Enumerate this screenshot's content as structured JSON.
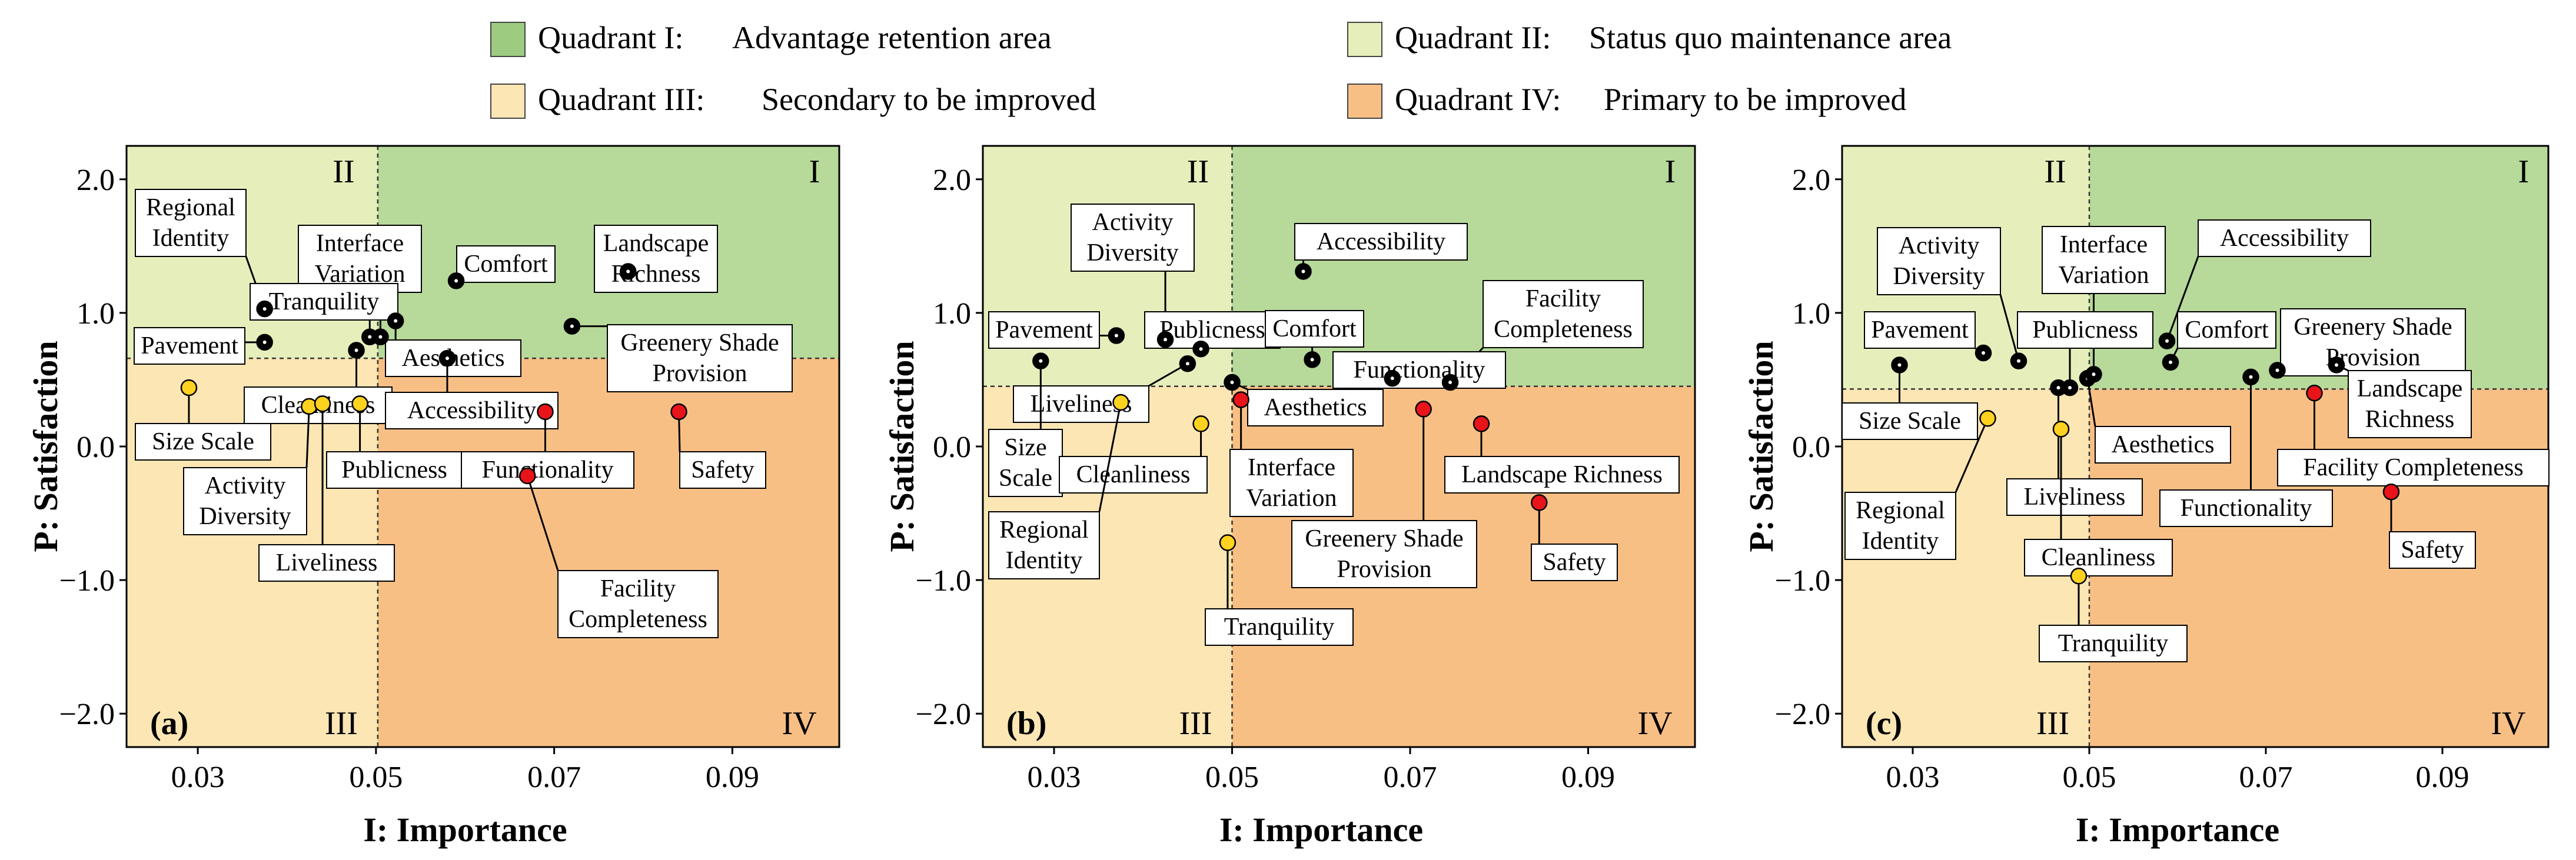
{
  "legend": {
    "items": [
      {
        "label": "Quadrant I:",
        "desc": "Advantage retention area",
        "color": "#9dcc80"
      },
      {
        "label": "Quadrant II:",
        "desc": "Status quo maintenance area",
        "color": "#e6efbb"
      },
      {
        "label": "Quadrant III:",
        "desc": "Secondary to be improved",
        "color": "#fbe6b4"
      },
      {
        "label": "Quadrant IV:",
        "desc": "Primary to be improved",
        "color": "#f8bf85"
      }
    ]
  },
  "colors": {
    "q1": "#b7d99a",
    "q2": "#e6efbb",
    "q3": "#fbe6b4",
    "q4": "#f8bf85",
    "point_black": "#000000",
    "point_yellow": "#ffd21f",
    "point_red": "#e8141a"
  },
  "chart_data": [
    {
      "type": "scatter",
      "panel_label": "(a)",
      "xlabel": "I: Importance",
      "ylabel": "P: Satisfaction",
      "xlim": [
        0.022,
        0.102
      ],
      "ylim": [
        -2.25,
        2.25
      ],
      "xticks": [
        0.03,
        0.05,
        0.07,
        0.09
      ],
      "xtick_labels": [
        "0.03",
        "0.05",
        "0.07",
        "0.09"
      ],
      "yticks": [
        2.0,
        1.0,
        0.0,
        -1.0,
        -2.0
      ],
      "ytick_labels": [
        "2.0",
        "1.0",
        "0.0",
        "−1.0",
        "−2.0"
      ],
      "x_split": 0.0502,
      "y_split": 0.66,
      "quadrant_labels": [
        "I",
        "II",
        "III",
        "IV"
      ],
      "points": [
        {
          "name": "Pavement",
          "x": 0.0375,
          "y": 0.78,
          "group": "black"
        },
        {
          "name": "Regional Identity",
          "x": 0.0375,
          "y": 1.03,
          "group": "black"
        },
        {
          "name": "Tranquility",
          "x": 0.0493,
          "y": 0.82,
          "group": "black"
        },
        {
          "name": "Interface Variation",
          "x": 0.0505,
          "y": 0.82,
          "group": "black"
        },
        {
          "name": "Comfort",
          "x": 0.059,
          "y": 1.24,
          "group": "black"
        },
        {
          "name": "Landscape Richness",
          "x": 0.0783,
          "y": 1.31,
          "group": "black"
        },
        {
          "name": "Aesthetics",
          "x": 0.0522,
          "y": 0.94,
          "group": "black"
        },
        {
          "name": "Cleanliness",
          "x": 0.0478,
          "y": 0.72,
          "group": "black"
        },
        {
          "name": "Accessibility",
          "x": 0.058,
          "y": 0.66,
          "group": "black"
        },
        {
          "name": "Greenery Shade Provision",
          "x": 0.072,
          "y": 0.9,
          "group": "black"
        },
        {
          "name": "Size Scale",
          "x": 0.029,
          "y": 0.44,
          "group": "yellow"
        },
        {
          "name": "Activity Diversity",
          "x": 0.0425,
          "y": 0.3,
          "group": "yellow"
        },
        {
          "name": "Liveliness",
          "x": 0.044,
          "y": 0.32,
          "group": "yellow"
        },
        {
          "name": "Publicness",
          "x": 0.0482,
          "y": 0.32,
          "group": "yellow"
        },
        {
          "name": "Functionality",
          "x": 0.069,
          "y": 0.26,
          "group": "red"
        },
        {
          "name": "Safety",
          "x": 0.084,
          "y": 0.26,
          "group": "red"
        },
        {
          "name": "Facility Completeness",
          "x": 0.067,
          "y": -0.22,
          "group": "red"
        }
      ],
      "labels": [
        {
          "text": [
            "Regional",
            "Identity"
          ],
          "point": "Regional Identity"
        },
        {
          "text": [
            "Pavement"
          ],
          "point": "Pavement"
        },
        {
          "text": [
            "Interface",
            "Variation"
          ],
          "point": "Interface Variation"
        },
        {
          "text": [
            "Tranquility"
          ],
          "point": "Tranquility"
        },
        {
          "text": [
            "Comfort"
          ],
          "point": "Comfort"
        },
        {
          "text": [
            "Landscape",
            "Richness"
          ],
          "point": "Landscape Richness"
        },
        {
          "text": [
            "Greenery Shade",
            "Provision"
          ],
          "point": "Greenery Shade Provision"
        },
        {
          "text": [
            "Aesthetics"
          ],
          "point": "Aesthetics"
        },
        {
          "text": [
            "Cleanliness"
          ],
          "point": "Cleanliness"
        },
        {
          "text": [
            "Accessibility"
          ],
          "point": "Accessibility"
        },
        {
          "text": [
            "Size Scale"
          ],
          "point": "Size Scale"
        },
        {
          "text": [
            "Activity",
            "Diversity"
          ],
          "point": "Activity Diversity"
        },
        {
          "text": [
            "Publicness"
          ],
          "point": "Publicness"
        },
        {
          "text": [
            "Functionality"
          ],
          "point": "Functionality"
        },
        {
          "text": [
            "Safety"
          ],
          "point": "Safety"
        },
        {
          "text": [
            "Liveliness"
          ],
          "point": "Liveliness"
        },
        {
          "text": [
            "Facility",
            "Completeness"
          ],
          "point": "Facility Completeness"
        }
      ]
    },
    {
      "type": "scatter",
      "panel_label": "(b)",
      "xlabel": "I: Importance",
      "ylabel": "P: Satisfaction",
      "xlim": [
        0.022,
        0.102
      ],
      "ylim": [
        -2.25,
        2.25
      ],
      "xticks": [
        0.03,
        0.05,
        0.07,
        0.09
      ],
      "xtick_labels": [
        "0.03",
        "0.05",
        "0.07",
        "0.09"
      ],
      "yticks": [
        2.0,
        1.0,
        0.0,
        -1.0,
        -2.0
      ],
      "ytick_labels": [
        "2.0",
        "1.0",
        "0.0",
        "−1.0",
        "−2.0"
      ],
      "x_split": 0.05,
      "y_split": 0.45,
      "quadrant_labels": [
        "I",
        "II",
        "III",
        "IV"
      ],
      "points": [
        {
          "name": "Size Scale",
          "x": 0.0285,
          "y": 0.64,
          "group": "black"
        },
        {
          "name": "Pavement",
          "x": 0.037,
          "y": 0.83,
          "group": "black"
        },
        {
          "name": "Activity Diversity",
          "x": 0.0425,
          "y": 0.8,
          "group": "black"
        },
        {
          "name": "Liveliness",
          "x": 0.045,
          "y": 0.62,
          "group": "black"
        },
        {
          "name": "Publicness",
          "x": 0.0465,
          "y": 0.73,
          "group": "black"
        },
        {
          "name": "Aesthetics",
          "x": 0.05,
          "y": 0.48,
          "group": "black"
        },
        {
          "name": "Accessibility",
          "x": 0.058,
          "y": 1.31,
          "group": "black"
        },
        {
          "name": "Comfort",
          "x": 0.059,
          "y": 0.65,
          "group": "black"
        },
        {
          "name": "Functionality",
          "x": 0.068,
          "y": 0.51,
          "group": "black"
        },
        {
          "name": "Facility Completeness",
          "x": 0.0745,
          "y": 0.48,
          "group": "black"
        },
        {
          "name": "Regional Identity",
          "x": 0.0375,
          "y": 0.33,
          "group": "yellow"
        },
        {
          "name": "Cleanliness",
          "x": 0.0465,
          "y": 0.17,
          "group": "yellow"
        },
        {
          "name": "Tranquility",
          "x": 0.0495,
          "y": -0.72,
          "group": "yellow"
        },
        {
          "name": "Interface Variation",
          "x": 0.051,
          "y": 0.35,
          "group": "red"
        },
        {
          "name": "Greenery Shade Provision",
          "x": 0.0715,
          "y": 0.28,
          "group": "red"
        },
        {
          "name": "Landscape Richness",
          "x": 0.078,
          "y": 0.17,
          "group": "red"
        },
        {
          "name": "Safety",
          "x": 0.0845,
          "y": -0.42,
          "group": "red"
        }
      ],
      "labels": [
        {
          "text": [
            "Activity",
            "Diversity"
          ],
          "point": "Activity Diversity"
        },
        {
          "text": [
            "Pavement"
          ],
          "point": "Pavement"
        },
        {
          "text": [
            "Publicness"
          ],
          "point": "Publicness"
        },
        {
          "text": [
            "Accessibility"
          ],
          "point": "Accessibility"
        },
        {
          "text": [
            "Comfort"
          ],
          "point": "Comfort"
        },
        {
          "text": [
            "Facility",
            "Completeness"
          ],
          "point": "Facility Completeness"
        },
        {
          "text": [
            "Functionality"
          ],
          "point": "Functionality"
        },
        {
          "text": [
            "Liveliness"
          ],
          "point": "Liveliness"
        },
        {
          "text": [
            "Aesthetics"
          ],
          "point": "Aesthetics"
        },
        {
          "text": [
            "Size",
            "Scale"
          ],
          "point": "Size Scale"
        },
        {
          "text": [
            "Cleanliness"
          ],
          "point": "Cleanliness"
        },
        {
          "text": [
            "Interface",
            "Variation"
          ],
          "point": "Interface Variation"
        },
        {
          "text": [
            "Landscape Richness"
          ],
          "point": "Landscape Richness"
        },
        {
          "text": [
            "Regional",
            "Identity"
          ],
          "point": "Regional Identity"
        },
        {
          "text": [
            "Greenery Shade",
            "Provision"
          ],
          "point": "Greenery Shade Provision"
        },
        {
          "text": [
            "Safety"
          ],
          "point": "Safety"
        },
        {
          "text": [
            "Tranquility"
          ],
          "point": "Tranquility"
        }
      ]
    },
    {
      "type": "scatter",
      "panel_label": "(c)",
      "xlabel": "I: Importance",
      "ylabel": "P: Satisfaction",
      "xlim": [
        0.022,
        0.102
      ],
      "ylim": [
        -2.25,
        2.25
      ],
      "xticks": [
        0.03,
        0.05,
        0.07,
        0.09
      ],
      "xtick_labels": [
        "0.03",
        "0.05",
        "0.07",
        "0.09"
      ],
      "yticks": [
        2.0,
        1.0,
        0.0,
        -1.0,
        -2.0
      ],
      "ytick_labels": [
        "2.0",
        "1.0",
        "0.0",
        "−1.0",
        "−2.0"
      ],
      "x_split": 0.05,
      "y_split": 0.43,
      "quadrant_labels": [
        "I",
        "II",
        "III",
        "IV"
      ],
      "points": [
        {
          "name": "Size Scale",
          "x": 0.0285,
          "y": 0.61,
          "group": "black"
        },
        {
          "name": "Pavement",
          "x": 0.038,
          "y": 0.7,
          "group": "black"
        },
        {
          "name": "Activity Diversity",
          "x": 0.042,
          "y": 0.64,
          "group": "black"
        },
        {
          "name": "Liveliness",
          "x": 0.0465,
          "y": 0.44,
          "group": "black"
        },
        {
          "name": "Publicness",
          "x": 0.0478,
          "y": 0.44,
          "group": "black"
        },
        {
          "name": "Aesthetics",
          "x": 0.0498,
          "y": 0.51,
          "group": "black"
        },
        {
          "name": "Interface Variation",
          "x": 0.0505,
          "y": 0.54,
          "group": "black"
        },
        {
          "name": "Accessibility",
          "x": 0.0588,
          "y": 0.79,
          "group": "black"
        },
        {
          "name": "Comfort",
          "x": 0.0592,
          "y": 0.63,
          "group": "black"
        },
        {
          "name": "Functionality",
          "x": 0.0683,
          "y": 0.52,
          "group": "black"
        },
        {
          "name": "Greenery Shade Provision",
          "x": 0.0713,
          "y": 0.57,
          "group": "black"
        },
        {
          "name": "Landscape Richness",
          "x": 0.078,
          "y": 0.61,
          "group": "black"
        },
        {
          "name": "Regional Identity",
          "x": 0.0385,
          "y": 0.21,
          "group": "yellow"
        },
        {
          "name": "Cleanliness",
          "x": 0.0468,
          "y": 0.13,
          "group": "yellow"
        },
        {
          "name": "Tranquility",
          "x": 0.0488,
          "y": -0.97,
          "group": "yellow"
        },
        {
          "name": "Facility Completeness",
          "x": 0.0755,
          "y": 0.4,
          "group": "red"
        },
        {
          "name": "Safety",
          "x": 0.0842,
          "y": -0.34,
          "group": "red"
        }
      ],
      "labels": [
        {
          "text": [
            "Activity",
            "Diversity"
          ],
          "point": "Activity Diversity"
        },
        {
          "text": [
            "Interface",
            "Variation"
          ],
          "point": "Interface Variation"
        },
        {
          "text": [
            "Accessibility"
          ],
          "point": "Accessibility"
        },
        {
          "text": [
            "Pavement"
          ],
          "point": "Pavement"
        },
        {
          "text": [
            "Publicness"
          ],
          "point": "Publicness"
        },
        {
          "text": [
            "Comfort"
          ],
          "point": "Comfort"
        },
        {
          "text": [
            "Greenery Shade",
            "Provision"
          ],
          "point": "Greenery Shade Provision"
        },
        {
          "text": [
            "Landscape",
            "Richness"
          ],
          "point": "Landscape Richness"
        },
        {
          "text": [
            "Size Scale"
          ],
          "point": "Size Scale"
        },
        {
          "text": [
            "Aesthetics"
          ],
          "point": "Aesthetics"
        },
        {
          "text": [
            "Facility Completeness"
          ],
          "point": "Facility Completeness"
        },
        {
          "text": [
            "Regional",
            "Identity"
          ],
          "point": "Regional Identity"
        },
        {
          "text": [
            "Liveliness"
          ],
          "point": "Liveliness"
        },
        {
          "text": [
            "Functionality"
          ],
          "point": "Functionality"
        },
        {
          "text": [
            "Safety"
          ],
          "point": "Safety"
        },
        {
          "text": [
            "Cleanliness"
          ],
          "point": "Cleanliness"
        },
        {
          "text": [
            "Tranquility"
          ],
          "point": "Tranquility"
        }
      ]
    }
  ]
}
